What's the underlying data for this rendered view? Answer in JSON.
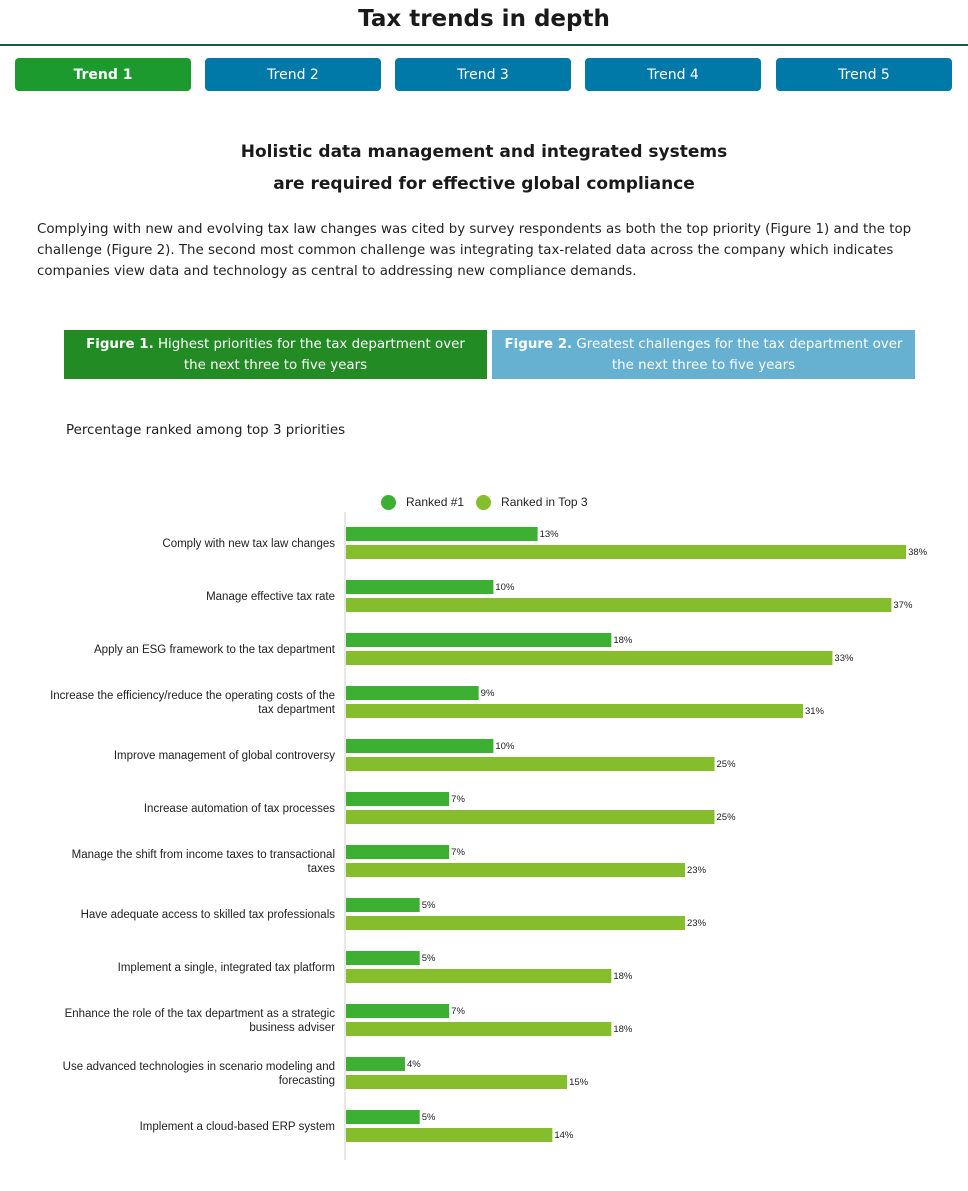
{
  "page_title": "Tax trends in depth",
  "tabs": [
    {
      "label": "Trend 1",
      "active": true
    },
    {
      "label": "Trend 2",
      "active": false
    },
    {
      "label": "Trend 3",
      "active": false
    },
    {
      "label": "Trend 4",
      "active": false
    },
    {
      "label": "Trend 5",
      "active": false
    }
  ],
  "headline": {
    "line1": "Holistic data management and integrated systems",
    "line2": "are required for effective global compliance"
  },
  "intro": "Complying with new and evolving tax law changes was cited by survey respondents as both the top priority (Figure 1) and the top challenge (Figure 2). The second most common challenge was integrating tax-related data across the company which indicates companies view data and technology as central to addressing new compliance demands.",
  "figure_tabs": [
    {
      "prefix": "Figure 1.",
      "text": "Highest priorities for the tax department over the next three to five years",
      "active": true
    },
    {
      "prefix": "Figure 2.",
      "text": "Greatest challenges for the tax department over the next three to five years",
      "active": false
    }
  ],
  "chart_subtitle": "Percentage ranked among top 3 priorities",
  "colors": {
    "ranked1": "#3daf33",
    "top3": "#86bd2d",
    "tab_active": "#1d9a2e",
    "tab_inactive": "#0079a8",
    "figure1": "#238b24",
    "figure2": "#66b1d1",
    "rule": "#1d5a45"
  },
  "chart_data": {
    "type": "bar",
    "orientation": "horizontal",
    "categories": [
      [
        "Comply with new tax law changes"
      ],
      [
        "Manage effective tax rate"
      ],
      [
        "Apply an ESG framework to the tax department"
      ],
      [
        "Increase the efficiency/reduce the operating costs of the",
        "tax department"
      ],
      [
        "Improve management of global controversy"
      ],
      [
        "Increase automation of tax processes"
      ],
      [
        "Manage the shift from income taxes to transactional",
        "taxes"
      ],
      [
        "Have adequate access to skilled tax professionals"
      ],
      [
        "Implement a single, integrated tax platform"
      ],
      [
        "Enhance the role of the tax department as a strategic",
        "business adviser"
      ],
      [
        "Use advanced technologies in scenario modeling and",
        "forecasting"
      ],
      [
        "Implement a cloud-based ERP system"
      ]
    ],
    "series": [
      {
        "name": "Ranked #1",
        "color": "#3daf33",
        "values": [
          13,
          10,
          18,
          9,
          10,
          7,
          7,
          5,
          5,
          7,
          4,
          5
        ]
      },
      {
        "name": "Ranked in Top 3",
        "color": "#86bd2d",
        "values": [
          38,
          37,
          33,
          31,
          25,
          25,
          23,
          23,
          18,
          18,
          15,
          14
        ]
      }
    ],
    "value_suffix": "%",
    "xlim": [
      0,
      40
    ],
    "legend_position": "top",
    "grid": false
  }
}
